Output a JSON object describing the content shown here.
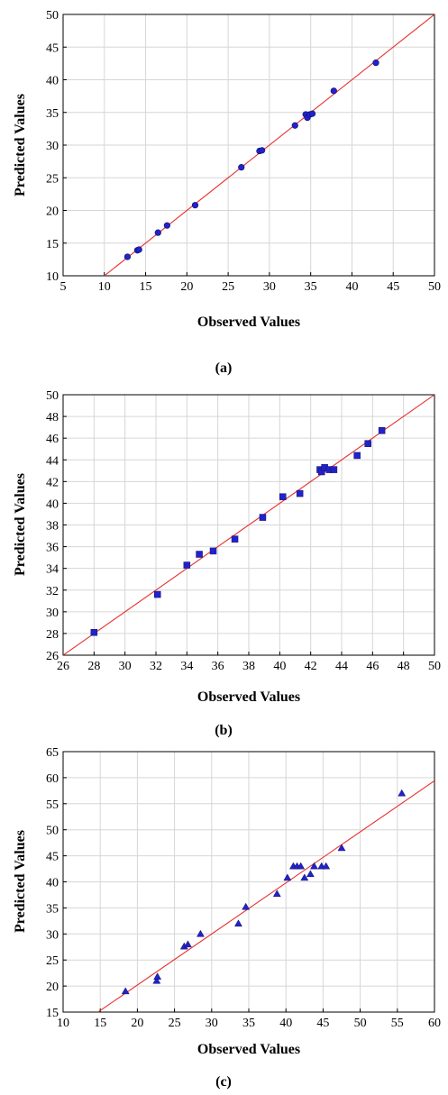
{
  "chart_data": [
    {
      "type": "scatter",
      "panel_label": "(a)",
      "xlabel": "Observed Values",
      "ylabel": "Predicted Values",
      "xlim": [
        5,
        50
      ],
      "ylim": [
        10,
        50
      ],
      "xticks": [
        5,
        10,
        15,
        20,
        25,
        30,
        35,
        40,
        45,
        50
      ],
      "yticks": [
        10,
        15,
        20,
        25,
        30,
        35,
        40,
        45,
        50
      ],
      "grid": true,
      "marker": "circle",
      "marker_color": "#2222cc",
      "fit_line": {
        "color": "#e8312f",
        "points": [
          [
            10,
            10
          ],
          [
            50,
            50
          ]
        ]
      },
      "points": [
        [
          12.8,
          12.9
        ],
        [
          14.0,
          13.9
        ],
        [
          14.2,
          14.0
        ],
        [
          16.5,
          16.6
        ],
        [
          17.6,
          17.7
        ],
        [
          21.0,
          20.8
        ],
        [
          26.6,
          26.6
        ],
        [
          28.8,
          29.1
        ],
        [
          29.1,
          29.2
        ],
        [
          33.1,
          33.0
        ],
        [
          34.4,
          34.7
        ],
        [
          34.6,
          34.2
        ],
        [
          34.9,
          34.7
        ],
        [
          35.2,
          34.8
        ],
        [
          37.8,
          38.3
        ],
        [
          42.9,
          42.6
        ]
      ]
    },
    {
      "type": "scatter",
      "panel_label": "(b)",
      "xlabel": "Observed Values",
      "ylabel": "Predicted Values",
      "xlim": [
        26,
        50
      ],
      "ylim": [
        26,
        50
      ],
      "xticks": [
        26,
        28,
        30,
        32,
        34,
        36,
        38,
        40,
        42,
        44,
        46,
        48,
        50
      ],
      "yticks": [
        26,
        28,
        30,
        32,
        34,
        36,
        38,
        40,
        42,
        44,
        46,
        48,
        50
      ],
      "grid": true,
      "marker": "square",
      "marker_color": "#2222cc",
      "fit_line": {
        "color": "#e8312f",
        "points": [
          [
            26,
            26
          ],
          [
            50,
            50
          ]
        ]
      },
      "points": [
        [
          28.0,
          28.1
        ],
        [
          32.1,
          31.6
        ],
        [
          34.0,
          34.3
        ],
        [
          34.8,
          35.3
        ],
        [
          35.7,
          35.6
        ],
        [
          37.1,
          36.7
        ],
        [
          38.9,
          38.7
        ],
        [
          40.2,
          40.6
        ],
        [
          41.3,
          40.9
        ],
        [
          42.6,
          43.1
        ],
        [
          42.7,
          42.9
        ],
        [
          42.9,
          43.3
        ],
        [
          43.2,
          43.1
        ],
        [
          43.5,
          43.1
        ],
        [
          45.0,
          44.4
        ],
        [
          45.7,
          45.5
        ],
        [
          46.6,
          46.7
        ]
      ]
    },
    {
      "type": "scatter",
      "panel_label": "(c)",
      "xlabel": "Observed Values",
      "ylabel": "Predicted Values",
      "xlim": [
        10,
        60
      ],
      "ylim": [
        15,
        65
      ],
      "xticks": [
        10,
        15,
        20,
        25,
        30,
        35,
        40,
        45,
        50,
        55,
        60
      ],
      "yticks": [
        15,
        20,
        25,
        30,
        35,
        40,
        45,
        50,
        55,
        60,
        65
      ],
      "grid": true,
      "marker": "triangle",
      "marker_color": "#2222cc",
      "fit_line": {
        "color": "#e8312f",
        "points": [
          [
            14.7,
            15
          ],
          [
            60,
            59.4
          ]
        ]
      },
      "points": [
        [
          18.4,
          19.0
        ],
        [
          22.6,
          21.0
        ],
        [
          22.7,
          21.8
        ],
        [
          26.3,
          27.6
        ],
        [
          26.8,
          28.0
        ],
        [
          28.5,
          30.0
        ],
        [
          33.6,
          32.0
        ],
        [
          34.6,
          35.2
        ],
        [
          38.8,
          37.7
        ],
        [
          40.2,
          40.8
        ],
        [
          41.0,
          43.0
        ],
        [
          41.5,
          43.0
        ],
        [
          42.0,
          43.0
        ],
        [
          42.5,
          40.8
        ],
        [
          43.3,
          41.5
        ],
        [
          43.8,
          43.0
        ],
        [
          44.8,
          43.0
        ],
        [
          45.4,
          43.0
        ],
        [
          47.5,
          46.5
        ],
        [
          55.6,
          57.0
        ]
      ]
    }
  ]
}
